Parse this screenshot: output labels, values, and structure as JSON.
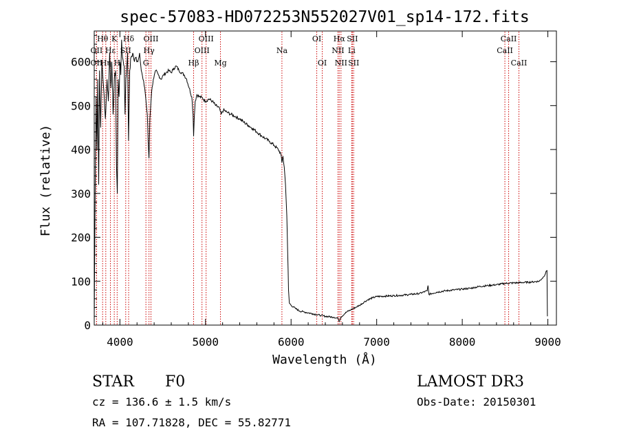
{
  "chart_data": {
    "type": "line",
    "title": "spec-57083-HD072253N552027V01_sp14-172.fits",
    "xlabel": "Wavelength (Å)",
    "ylabel": "Flux (relative)",
    "xlim": [
      3700,
      9100
    ],
    "ylim": [
      0,
      670
    ],
    "xticks": [
      4000,
      5000,
      6000,
      7000,
      8000,
      9000
    ],
    "yticks": [
      0,
      100,
      200,
      300,
      400,
      500,
      600
    ],
    "line_color": "#000000",
    "marker_color": "#cc0000",
    "series": [
      {
        "points": [
          [
            3700,
            5
          ],
          [
            3712,
            330
          ],
          [
            3722,
            520
          ],
          [
            3732,
            400
          ],
          [
            3742,
            560
          ],
          [
            3752,
            320
          ],
          [
            3762,
            580
          ],
          [
            3775,
            450
          ],
          [
            3790,
            600
          ],
          [
            3810,
            540
          ],
          [
            3830,
            470
          ],
          [
            3850,
            560
          ],
          [
            3865,
            510
          ],
          [
            3880,
            620
          ],
          [
            3895,
            540
          ],
          [
            3905,
            600
          ],
          [
            3920,
            480
          ],
          [
            3935,
            560
          ],
          [
            3950,
            580
          ],
          [
            3960,
            360
          ],
          [
            3970,
            300
          ],
          [
            3980,
            560
          ],
          [
            3990,
            520
          ],
          [
            4000,
            600
          ],
          [
            4010,
            570
          ],
          [
            4020,
            650
          ],
          [
            4030,
            610
          ],
          [
            4040,
            600
          ],
          [
            4050,
            590
          ],
          [
            4060,
            480
          ],
          [
            4070,
            560
          ],
          [
            4080,
            590
          ],
          [
            4090,
            620
          ],
          [
            4101,
            420
          ],
          [
            4115,
            580
          ],
          [
            4130,
            610
          ],
          [
            4150,
            620
          ],
          [
            4170,
            600
          ],
          [
            4190,
            610
          ],
          [
            4210,
            600
          ],
          [
            4230,
            620
          ],
          [
            4250,
            580
          ],
          [
            4270,
            560
          ],
          [
            4290,
            540
          ],
          [
            4310,
            500
          ],
          [
            4320,
            480
          ],
          [
            4330,
            420
          ],
          [
            4340,
            380
          ],
          [
            4350,
            470
          ],
          [
            4370,
            530
          ],
          [
            4390,
            560
          ],
          [
            4420,
            580
          ],
          [
            4450,
            570
          ],
          [
            4480,
            560
          ],
          [
            4510,
            570
          ],
          [
            4540,
            575
          ],
          [
            4570,
            580
          ],
          [
            4600,
            575
          ],
          [
            4630,
            585
          ],
          [
            4660,
            590
          ],
          [
            4690,
            580
          ],
          [
            4720,
            575
          ],
          [
            4750,
            570
          ],
          [
            4780,
            560
          ],
          [
            4810,
            540
          ],
          [
            4840,
            520
          ],
          [
            4855,
            480
          ],
          [
            4861,
            430
          ],
          [
            4868,
            470
          ],
          [
            4880,
            510
          ],
          [
            4900,
            525
          ],
          [
            4930,
            520
          ],
          [
            4960,
            518
          ],
          [
            5000,
            510
          ],
          [
            5040,
            515
          ],
          [
            5080,
            510
          ],
          [
            5120,
            500
          ],
          [
            5160,
            495
          ],
          [
            5183,
            480
          ],
          [
            5210,
            490
          ],
          [
            5250,
            485
          ],
          [
            5300,
            480
          ],
          [
            5350,
            475
          ],
          [
            5400,
            470
          ],
          [
            5450,
            462
          ],
          [
            5500,
            455
          ],
          [
            5550,
            448
          ],
          [
            5600,
            440
          ],
          [
            5650,
            432
          ],
          [
            5700,
            425
          ],
          [
            5750,
            418
          ],
          [
            5800,
            410
          ],
          [
            5850,
            400
          ],
          [
            5880,
            390
          ],
          [
            5893,
            370
          ],
          [
            5905,
            385
          ],
          [
            5920,
            360
          ],
          [
            5935,
            320
          ],
          [
            5950,
            250
          ],
          [
            5960,
            170
          ],
          [
            5970,
            80
          ],
          [
            5980,
            50
          ],
          [
            6000,
            45
          ],
          [
            6050,
            38
          ],
          [
            6100,
            32
          ],
          [
            6150,
            30
          ],
          [
            6200,
            28
          ],
          [
            6250,
            26
          ],
          [
            6300,
            24
          ],
          [
            6350,
            22
          ],
          [
            6400,
            20
          ],
          [
            6450,
            19
          ],
          [
            6500,
            18
          ],
          [
            6550,
            15
          ],
          [
            6563,
            8
          ],
          [
            6580,
            18
          ],
          [
            6620,
            25
          ],
          [
            6650,
            30
          ],
          [
            6700,
            35
          ],
          [
            6750,
            40
          ],
          [
            6800,
            45
          ],
          [
            6850,
            52
          ],
          [
            6900,
            58
          ],
          [
            6950,
            62
          ],
          [
            7000,
            65
          ],
          [
            7100,
            66
          ],
          [
            7200,
            67
          ],
          [
            7300,
            68
          ],
          [
            7400,
            70
          ],
          [
            7500,
            72
          ],
          [
            7590,
            78
          ],
          [
            7600,
            90
          ],
          [
            7610,
            70
          ],
          [
            7700,
            75
          ],
          [
            7800,
            78
          ],
          [
            7900,
            80
          ],
          [
            8000,
            82
          ],
          [
            8100,
            84
          ],
          [
            8200,
            88
          ],
          [
            8300,
            90
          ],
          [
            8400,
            92
          ],
          [
            8500,
            95
          ],
          [
            8600,
            96
          ],
          [
            8700,
            97
          ],
          [
            8800,
            98
          ],
          [
            8900,
            100
          ],
          [
            8950,
            110
          ],
          [
            8990,
            125
          ],
          [
            8995,
            20
          ]
        ]
      }
    ],
    "line_markers": [
      {
        "label": "OII",
        "x": 3727,
        "row": 2
      },
      {
        "label": "Hθ",
        "x": 3798,
        "row": 0
      },
      {
        "label": "OII",
        "x": 3727,
        "row": 1
      },
      {
        "label": "Hη",
        "x": 3835,
        "row": 2
      },
      {
        "label": "Hε",
        "x": 3889,
        "row": 1
      },
      {
        "label": "K",
        "x": 3934,
        "row": 0
      },
      {
        "label": "H",
        "x": 3968,
        "row": 2
      },
      {
        "label": "SII",
        "x": 4068,
        "row": 1
      },
      {
        "label": "Hδ",
        "x": 4102,
        "row": 0
      },
      {
        "label": "G",
        "x": 4304,
        "row": 2
      },
      {
        "label": "Hγ",
        "x": 4340,
        "row": 1
      },
      {
        "label": "OIII",
        "x": 4363,
        "row": 0
      },
      {
        "label": "Hβ",
        "x": 4861,
        "row": 2
      },
      {
        "label": "OIII",
        "x": 4959,
        "row": 1
      },
      {
        "label": "OIII",
        "x": 5007,
        "row": 0
      },
      {
        "label": "Mg",
        "x": 5175,
        "row": 2
      },
      {
        "label": "Na",
        "x": 5893,
        "row": 1
      },
      {
        "label": "OI",
        "x": 6300,
        "row": 0
      },
      {
        "label": "OI",
        "x": 6364,
        "row": 2
      },
      {
        "label": "NII",
        "x": 6548,
        "row": 1
      },
      {
        "label": "Hα",
        "x": 6563,
        "row": 0
      },
      {
        "label": "NII",
        "x": 6583,
        "row": 2
      },
      {
        "label": "Li",
        "x": 6708,
        "row": 1
      },
      {
        "label": "SII",
        "x": 6716,
        "row": 0
      },
      {
        "label": "SII",
        "x": 6731,
        "row": 2
      },
      {
        "label": "CaII",
        "x": 8498,
        "row": 1
      },
      {
        "label": "CaII",
        "x": 8542,
        "row": 0
      },
      {
        "label": "CaII",
        "x": 8662,
        "row": 2
      }
    ]
  },
  "info": {
    "object_class": "STAR",
    "subclass": "F0",
    "survey": "LAMOST DR3",
    "cz": "cz = 136.6 ± 1.5 km/s",
    "obs_date": "Obs-Date: 20150301",
    "coords": "RA = 107.71828, DEC =  55.82771"
  }
}
